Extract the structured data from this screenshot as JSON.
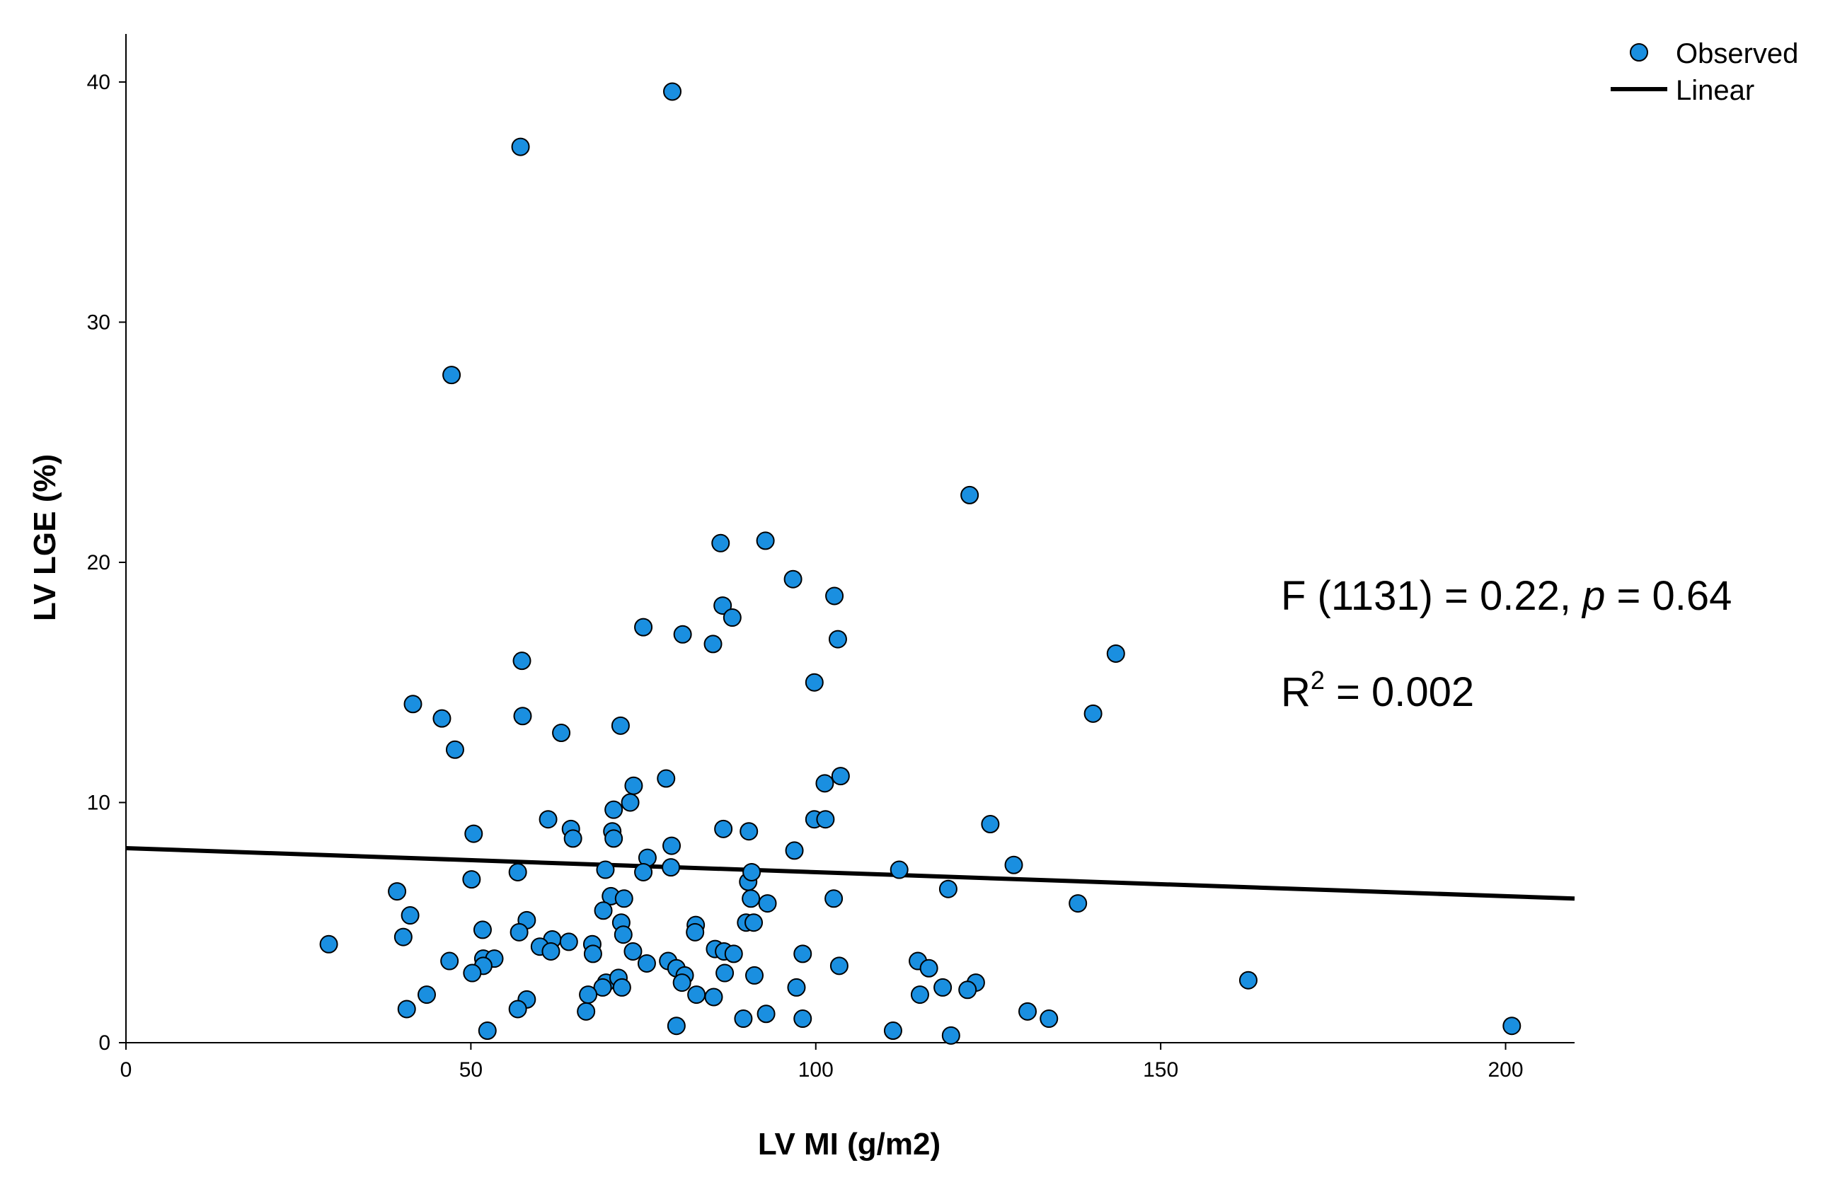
{
  "chart_data": {
    "type": "scatter",
    "xlabel": "LV MI (g/m2)",
    "ylabel": "LV LGE (%)",
    "xlim": [
      0,
      210
    ],
    "ylim": [
      0,
      42
    ],
    "xticks": [
      0,
      50,
      100,
      150,
      200
    ],
    "yticks": [
      0,
      10,
      20,
      30,
      40
    ],
    "grid": false,
    "legend": {
      "position": "top-right",
      "entries": [
        {
          "label": "Observed",
          "kind": "marker"
        },
        {
          "label": "Linear",
          "kind": "line"
        }
      ]
    },
    "colors": {
      "marker_fill": "#1a8fe0",
      "marker_edge": "#000000",
      "line": "#000000"
    },
    "fit_line": {
      "x": [
        0,
        210
      ],
      "y": [
        8.1,
        6.0
      ]
    },
    "annotations": {
      "f_prefix": "F (1131) = 0.22, ",
      "f_p": "p",
      "f_suffix": " = 0.64",
      "r_base": "R",
      "r_sup": "2",
      "r_suffix": " = 0.002"
    },
    "series": [
      {
        "points": [
          [
            79.2,
            39.6
          ],
          [
            57.2,
            37.3
          ],
          [
            47.2,
            27.8
          ],
          [
            122.3,
            22.8
          ],
          [
            86.2,
            20.8
          ],
          [
            92.7,
            20.9
          ],
          [
            96.7,
            19.3
          ],
          [
            102.7,
            18.6
          ],
          [
            86.5,
            18.2
          ],
          [
            87.9,
            17.7
          ],
          [
            75.0,
            17.3
          ],
          [
            80.7,
            17.0
          ],
          [
            85.1,
            16.6
          ],
          [
            103.2,
            16.8
          ],
          [
            143.5,
            16.2
          ],
          [
            57.4,
            15.9
          ],
          [
            99.8,
            15.0
          ],
          [
            41.6,
            14.1
          ],
          [
            45.8,
            13.5
          ],
          [
            57.5,
            13.6
          ],
          [
            140.2,
            13.7
          ],
          [
            63.1,
            12.9
          ],
          [
            71.7,
            13.2
          ],
          [
            47.7,
            12.2
          ],
          [
            78.3,
            11.0
          ],
          [
            73.6,
            10.7
          ],
          [
            101.3,
            10.8
          ],
          [
            103.6,
            11.1
          ],
          [
            73.1,
            10.0
          ],
          [
            70.7,
            9.7
          ],
          [
            61.2,
            9.3
          ],
          [
            64.5,
            8.9
          ],
          [
            64.8,
            8.5
          ],
          [
            70.5,
            8.8
          ],
          [
            70.7,
            8.5
          ],
          [
            99.8,
            9.3
          ],
          [
            101.4,
            9.3
          ],
          [
            125.3,
            9.1
          ],
          [
            50.4,
            8.7
          ],
          [
            86.6,
            8.9
          ],
          [
            90.3,
            8.8
          ],
          [
            79.1,
            8.2
          ],
          [
            96.9,
            8.0
          ],
          [
            75.6,
            7.7
          ],
          [
            75.0,
            7.1
          ],
          [
            56.8,
            7.1
          ],
          [
            69.5,
            7.2
          ],
          [
            79.0,
            7.3
          ],
          [
            112.1,
            7.2
          ],
          [
            128.7,
            7.4
          ],
          [
            90.2,
            6.7
          ],
          [
            90.7,
            7.1
          ],
          [
            50.1,
            6.8
          ],
          [
            39.3,
            6.3
          ],
          [
            70.3,
            6.1
          ],
          [
            72.2,
            6.0
          ],
          [
            90.6,
            6.0
          ],
          [
            102.6,
            6.0
          ],
          [
            119.2,
            6.4
          ],
          [
            93.0,
            5.8
          ],
          [
            138.0,
            5.8
          ],
          [
            69.2,
            5.5
          ],
          [
            41.2,
            5.3
          ],
          [
            58.1,
            5.1
          ],
          [
            71.8,
            5.0
          ],
          [
            82.6,
            4.9
          ],
          [
            89.9,
            5.0
          ],
          [
            91.0,
            5.0
          ],
          [
            51.7,
            4.7
          ],
          [
            57.0,
            4.6
          ],
          [
            40.2,
            4.4
          ],
          [
            72.1,
            4.5
          ],
          [
            82.5,
            4.6
          ],
          [
            61.8,
            4.3
          ],
          [
            64.2,
            4.2
          ],
          [
            60.0,
            4.0
          ],
          [
            61.6,
            3.8
          ],
          [
            67.6,
            4.1
          ],
          [
            29.4,
            4.1
          ],
          [
            73.5,
            3.8
          ],
          [
            85.4,
            3.9
          ],
          [
            86.7,
            3.8
          ],
          [
            88.1,
            3.7
          ],
          [
            98.1,
            3.7
          ],
          [
            51.8,
            3.5
          ],
          [
            53.4,
            3.5
          ],
          [
            67.7,
            3.7
          ],
          [
            46.9,
            3.4
          ],
          [
            51.8,
            3.2
          ],
          [
            75.5,
            3.3
          ],
          [
            78.6,
            3.4
          ],
          [
            79.8,
            3.1
          ],
          [
            114.8,
            3.4
          ],
          [
            116.4,
            3.1
          ],
          [
            103.4,
            3.2
          ],
          [
            50.2,
            2.9
          ],
          [
            81.0,
            2.8
          ],
          [
            86.8,
            2.9
          ],
          [
            91.1,
            2.8
          ],
          [
            69.6,
            2.5
          ],
          [
            71.4,
            2.7
          ],
          [
            80.6,
            2.5
          ],
          [
            123.2,
            2.5
          ],
          [
            162.7,
            2.6
          ],
          [
            69.1,
            2.3
          ],
          [
            71.9,
            2.3
          ],
          [
            97.2,
            2.3
          ],
          [
            118.4,
            2.3
          ],
          [
            122.0,
            2.2
          ],
          [
            43.6,
            2.0
          ],
          [
            67.0,
            2.0
          ],
          [
            82.7,
            2.0
          ],
          [
            85.2,
            1.9
          ],
          [
            115.1,
            2.0
          ],
          [
            58.1,
            1.8
          ],
          [
            40.7,
            1.4
          ],
          [
            56.8,
            1.4
          ],
          [
            66.7,
            1.3
          ],
          [
            92.8,
            1.2
          ],
          [
            130.7,
            1.3
          ],
          [
            89.5,
            1.0
          ],
          [
            98.1,
            1.0
          ],
          [
            133.8,
            1.0
          ],
          [
            79.8,
            0.7
          ],
          [
            111.2,
            0.5
          ],
          [
            52.4,
            0.5
          ],
          [
            119.6,
            0.3
          ],
          [
            200.9,
            0.7
          ]
        ]
      }
    ]
  }
}
